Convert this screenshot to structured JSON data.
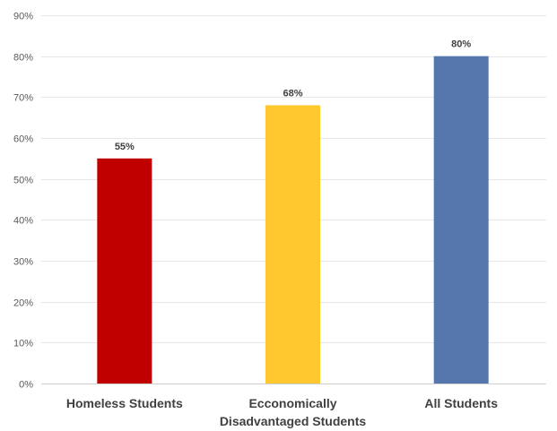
{
  "chart_data": {
    "type": "bar",
    "title": "",
    "xlabel": "",
    "ylabel": "",
    "categories": [
      "Homeless Students",
      "Ecconomically Disadvantaged Students",
      "All Students"
    ],
    "category_lines": [
      [
        "Homeless Students"
      ],
      [
        "Ecconomically",
        "Disadvantaged Students"
      ],
      [
        "All Students"
      ]
    ],
    "values": [
      55,
      68,
      80
    ],
    "data_labels": [
      "55%",
      "68%",
      "80%"
    ],
    "colors": [
      "#c00000",
      "#ffc82e",
      "#5677ae"
    ],
    "ylim": [
      0,
      90
    ],
    "yticks": [
      0,
      10,
      20,
      30,
      40,
      50,
      60,
      70,
      80,
      90
    ],
    "ytick_labels": [
      "0%",
      "10%",
      "20%",
      "30%",
      "40%",
      "50%",
      "60%",
      "70%",
      "80%",
      "90%"
    ],
    "grid": true,
    "legend": "none"
  }
}
